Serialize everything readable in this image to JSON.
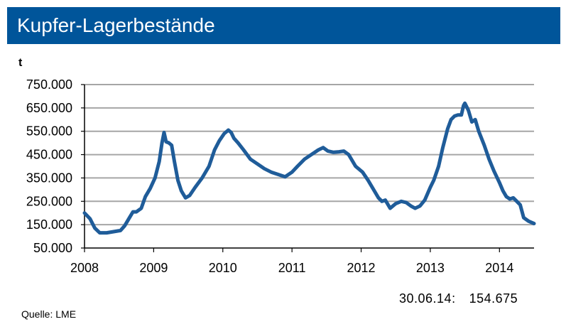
{
  "chart_data": {
    "type": "line",
    "title": "Kupfer-Lagerbestände",
    "ylabel": "t",
    "xlabel": "",
    "xlim": [
      2008,
      2014.5
    ],
    "ylim": [
      50000,
      750000
    ],
    "yticks": [
      50000,
      150000,
      250000,
      350000,
      450000,
      550000,
      650000,
      750000
    ],
    "ytick_labels": [
      "50.000",
      "150.000",
      "250.000",
      "350.000",
      "450.000",
      "550.000",
      "650.000",
      "750.000"
    ],
    "xticks": [
      2008,
      2009,
      2010,
      2011,
      2012,
      2013,
      2014
    ],
    "xtick_labels": [
      "2008",
      "2009",
      "2010",
      "2011",
      "2012",
      "2013",
      "2014"
    ],
    "grid": true,
    "series": [
      {
        "name": "Kupfer-Lagerbestände",
        "color": "#1f5c99",
        "x": [
          2008.0,
          2008.08,
          2008.15,
          2008.22,
          2008.32,
          2008.42,
          2008.52,
          2008.58,
          2008.65,
          2008.7,
          2008.75,
          2008.82,
          2008.88,
          2008.95,
          2009.02,
          2009.08,
          2009.12,
          2009.15,
          2009.18,
          2009.22,
          2009.26,
          2009.3,
          2009.35,
          2009.4,
          2009.46,
          2009.52,
          2009.6,
          2009.7,
          2009.8,
          2009.88,
          2009.95,
          2010.02,
          2010.08,
          2010.12,
          2010.16,
          2010.22,
          2010.3,
          2010.4,
          2010.5,
          2010.6,
          2010.7,
          2010.8,
          2010.9,
          2011.0,
          2011.08,
          2011.18,
          2011.28,
          2011.38,
          2011.45,
          2011.52,
          2011.6,
          2011.68,
          2011.75,
          2011.82,
          2011.92,
          2012.02,
          2012.1,
          2012.18,
          2012.25,
          2012.3,
          2012.35,
          2012.42,
          2012.5,
          2012.58,
          2012.65,
          2012.72,
          2012.78,
          2012.85,
          2012.92,
          2013.0,
          2013.05,
          2013.12,
          2013.18,
          2013.25,
          2013.3,
          2013.35,
          2013.4,
          2013.45,
          2013.48,
          2013.5,
          2013.55,
          2013.6,
          2013.65,
          2013.7,
          2013.78,
          2013.85,
          2013.92,
          2014.0,
          2014.05,
          2014.1,
          2014.15,
          2014.2,
          2014.25,
          2014.3,
          2014.35,
          2014.42,
          2014.5
        ],
        "y": [
          200000,
          175000,
          135000,
          115000,
          115000,
          120000,
          125000,
          145000,
          180000,
          205000,
          205000,
          220000,
          270000,
          305000,
          350000,
          420000,
          500000,
          545000,
          505000,
          500000,
          490000,
          420000,
          340000,
          295000,
          265000,
          275000,
          310000,
          350000,
          400000,
          470000,
          510000,
          540000,
          555000,
          545000,
          520000,
          500000,
          470000,
          430000,
          410000,
          390000,
          375000,
          365000,
          355000,
          375000,
          400000,
          430000,
          450000,
          470000,
          480000,
          465000,
          460000,
          462000,
          465000,
          450000,
          400000,
          375000,
          340000,
          300000,
          265000,
          250000,
          255000,
          220000,
          240000,
          250000,
          245000,
          230000,
          220000,
          230000,
          255000,
          310000,
          340000,
          400000,
          480000,
          560000,
          600000,
          615000,
          620000,
          620000,
          660000,
          670000,
          640000,
          590000,
          600000,
          550000,
          490000,
          430000,
          380000,
          330000,
          295000,
          270000,
          260000,
          265000,
          250000,
          235000,
          180000,
          165000,
          154675
        ]
      }
    ],
    "annotation": {
      "date": "30.06.14:",
      "value": "154.675"
    },
    "source": "Quelle:  LME"
  }
}
